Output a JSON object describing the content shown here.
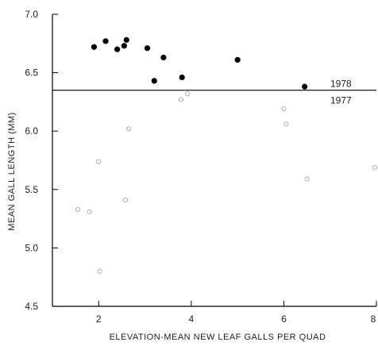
{
  "chart_data": {
    "type": "scatter",
    "xlabel": "ELEVATION-MEAN NEW LEAF GALLS PER QUAD",
    "ylabel": "MEAN GALL LENGTH (MM)",
    "xlim": [
      1.0,
      8.0
    ],
    "ylim": [
      4.5,
      7.0
    ],
    "x_ticks": [
      {
        "value": 2,
        "label": "2"
      },
      {
        "value": 4,
        "label": "4"
      },
      {
        "value": 6,
        "label": "6"
      },
      {
        "value": 8,
        "label": "8"
      }
    ],
    "y_ticks": [
      {
        "value": 4.5,
        "label": "4.5"
      },
      {
        "value": 5.0,
        "label": "5.0"
      },
      {
        "value": 5.5,
        "label": "5.5"
      },
      {
        "value": 6.0,
        "label": "6.0"
      },
      {
        "value": 6.5,
        "label": "6.5"
      },
      {
        "value": 7.0,
        "label": "7.0"
      }
    ],
    "divider": {
      "y": 6.35,
      "label_above": "1978",
      "label_below": "1977"
    },
    "series": [
      {
        "name": "1978",
        "marker": "filled-circle",
        "color": "#000000",
        "points": [
          {
            "x": 1.9,
            "y": 6.72
          },
          {
            "x": 2.15,
            "y": 6.77
          },
          {
            "x": 2.4,
            "y": 6.7
          },
          {
            "x": 2.55,
            "y": 6.73
          },
          {
            "x": 2.6,
            "y": 6.78
          },
          {
            "x": 3.05,
            "y": 6.71
          },
          {
            "x": 3.2,
            "y": 6.43
          },
          {
            "x": 3.4,
            "y": 6.63
          },
          {
            "x": 3.8,
            "y": 6.46
          },
          {
            "x": 5.0,
            "y": 6.61
          },
          {
            "x": 6.45,
            "y": 6.38
          }
        ]
      },
      {
        "name": "1977",
        "marker": "open-circle",
        "color": "#9a9a9a",
        "points": [
          {
            "x": 1.55,
            "y": 5.33
          },
          {
            "x": 1.8,
            "y": 5.31
          },
          {
            "x": 2.0,
            "y": 5.74
          },
          {
            "x": 2.02,
            "y": 4.8
          },
          {
            "x": 2.58,
            "y": 5.41
          },
          {
            "x": 2.65,
            "y": 6.02
          },
          {
            "x": 3.78,
            "y": 6.27
          },
          {
            "x": 3.92,
            "y": 6.32
          },
          {
            "x": 6.0,
            "y": 6.19
          },
          {
            "x": 6.05,
            "y": 6.06
          },
          {
            "x": 6.5,
            "y": 5.59
          },
          {
            "x": 8.0,
            "y": 5.69
          }
        ]
      }
    ]
  }
}
